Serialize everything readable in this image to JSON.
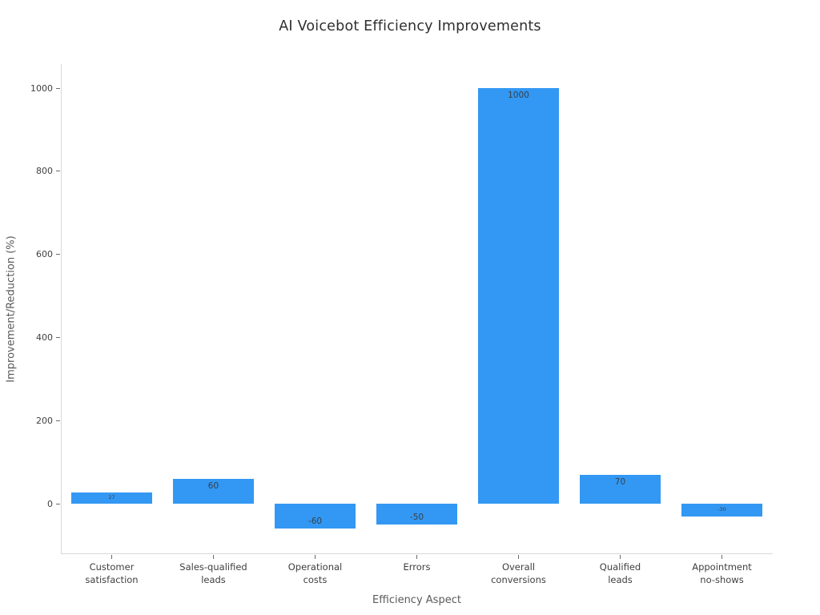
{
  "chart_data": {
    "type": "bar",
    "title": "AI Voicebot Efficiency Improvements",
    "xlabel": "Efficiency Aspect",
    "ylabel": "Improvement/Reduction (%)",
    "categories": [
      "Customer\nsatisfaction",
      "Sales-qualified\nleads",
      "Operational\ncosts",
      "Errors",
      "Overall\nconversions",
      "Qualified\nleads",
      "Appointment\nno-shows"
    ],
    "values": [
      27,
      60,
      -60,
      -50,
      1000,
      70,
      -30
    ],
    "bar_labels": [
      "27",
      "60",
      "-60",
      "-50",
      "1000",
      "70",
      "-30"
    ],
    "yticks": [
      0,
      200,
      400,
      600,
      800,
      1000
    ],
    "ylim": [
      -121,
      1058
    ],
    "bar_color": "#3398f3",
    "grid": false,
    "legend": false,
    "background_color": "#ffffff"
  }
}
